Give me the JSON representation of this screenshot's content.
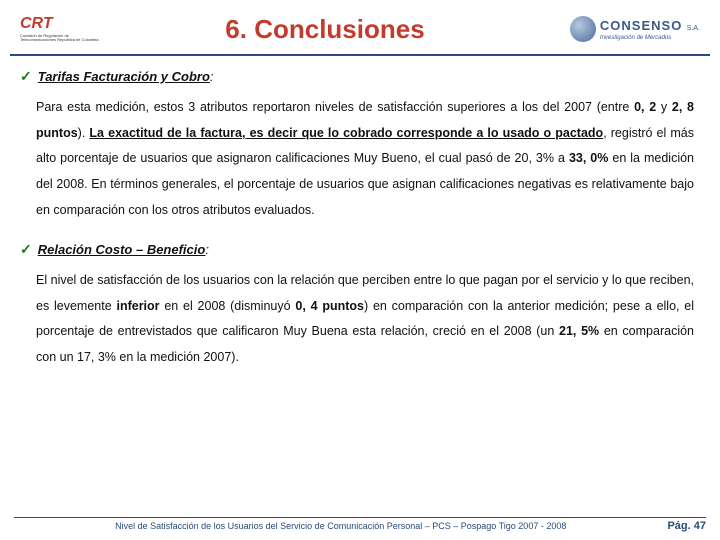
{
  "header": {
    "logo_left_main": "CRT",
    "logo_left_sub": "Comisión de Regulación de Telecomunicaciones República de Colombia",
    "title": "6. Conclusiones",
    "logo_right_name": "CONSENSO",
    "logo_right_sa": "S.A.",
    "logo_right_tag": "Investigación de Mercados"
  },
  "s1": {
    "head": "Tarifas Facturación y Cobro",
    "p1a": "Para esta medición, estos 3 atributos reportaron niveles de satisfacción superiores a los del 2007 (entre ",
    "p1b": "0, 2",
    "p1c": " y ",
    "p1d": "2, 8 puntos",
    "p1e": "). ",
    "p1f": "La exactitud de la factura, es decir que lo cobrado corresponde a lo usado o pactado",
    "p1g": ", registró el más alto porcentaje de usuarios que asignaron calificaciones Muy Bueno, el cual pasó de 20, 3% a ",
    "p1h": "33, 0%",
    "p1i": " en la medición del 2008. En términos generales, el porcentaje de usuarios que asignan calificaciones negativas es relativamente bajo en comparación con los otros atributos evaluados."
  },
  "s2": {
    "head": "Relación Costo – Beneficio",
    "p1a": "El nivel de satisfacción de los usuarios con la relación que perciben entre lo que pagan por el servicio y lo que reciben, es levemente ",
    "p1b": "inferior",
    "p1c": " en el 2008 (disminuyó ",
    "p1d": "0, 4 puntos",
    "p1e": ") en comparación con la anterior medición; pese a ello, el porcentaje de entrevistados que calificaron Muy Buena esta relación, creció en el 2008 (un ",
    "p1f": "21, 5%",
    "p1g": " en comparación con un 17, 3% en la medición 2007)."
  },
  "footer": {
    "text": "Nivel de Satisfacción de los Usuarios del Servicio de Comunicación Personal – PCS – Pospago Tigo 2007 - 2008",
    "page": "Pág. 47"
  }
}
